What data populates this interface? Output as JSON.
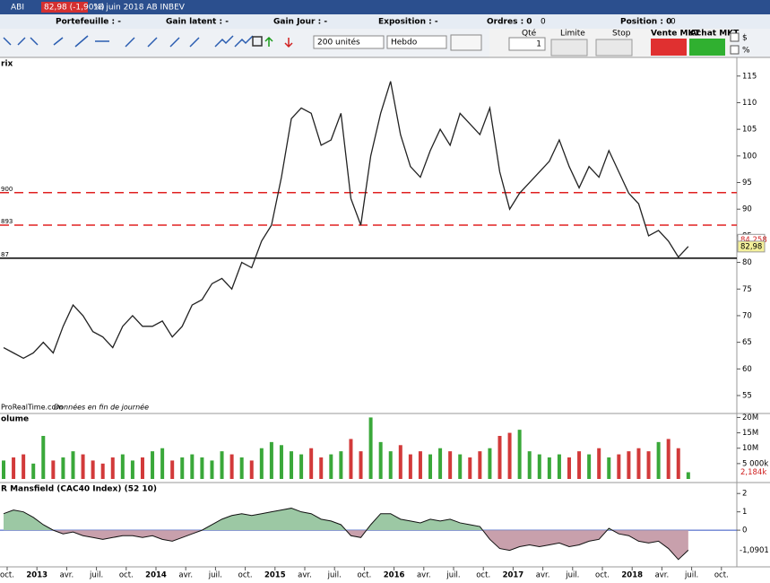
{
  "header": {
    "symbol": "ABI",
    "quote": "82,98 (-1,90%)",
    "info": "18 juin 2018 AB INBEV"
  },
  "infobar": [
    "Portefeuille : -",
    "Gain latent : -",
    "Gain Jour : -",
    "Exposition : -"
  ],
  "orders": {
    "label": "Ordres : 0",
    "count": "0"
  },
  "position": {
    "label": "Position : 0",
    "count": "0"
  },
  "toolbar": {
    "quantity": "200 unités",
    "period": "Hebdo",
    "qty_label": "Qté",
    "qty": "1",
    "limit": "Limite",
    "stop": "Stop",
    "sell": "Vente MKT",
    "buy": "Achat MKT",
    "dollar": "$",
    "percent": "%"
  },
  "price_panel": {
    "title": "rix",
    "source": "ProRealTime.com",
    "source_note": "Données en fin de journée",
    "ylim": [
      51.8,
      118.5
    ],
    "yticks": [
      55,
      60,
      65,
      70,
      75,
      80,
      85,
      90,
      95,
      100,
      105,
      110,
      115
    ],
    "levels": [
      {
        "value": 93.1,
        "label": "900",
        "style": "dashed",
        "color": "#e02020"
      },
      {
        "value": 87,
        "label": "893",
        "style": "dashed",
        "color": "#e02020"
      },
      {
        "value": 80.8,
        "label": "87",
        "style": "solid",
        "color": "#000000"
      }
    ],
    "current": [
      {
        "value": 84.258,
        "label": "84,258"
      },
      {
        "value": 82.98,
        "label": "82,98"
      }
    ],
    "color": "#222222",
    "values": [
      64,
      63,
      62,
      63,
      65,
      63,
      68,
      72,
      70,
      67,
      66,
      64,
      68,
      70,
      68,
      68,
      69,
      66,
      68,
      72,
      73,
      76,
      77,
      75,
      80,
      79,
      84,
      87,
      96,
      107,
      109,
      108,
      102,
      103,
      108,
      92,
      87,
      100,
      108,
      114,
      104,
      98,
      96,
      101,
      105,
      102,
      108,
      106,
      104,
      109,
      97,
      90,
      93,
      95,
      97,
      99,
      103,
      98,
      94,
      98,
      96,
      101,
      97,
      93,
      91,
      85,
      86,
      84,
      81,
      83
    ]
  },
  "volume_panel": {
    "title": "olume",
    "ylim": [
      0,
      21
    ],
    "yticks": [
      {
        "value": 20,
        "label": "20M"
      },
      {
        "value": 15,
        "label": "15M"
      },
      {
        "value": 10,
        "label": "10M"
      },
      {
        "value": 5,
        "label": "5 000k"
      }
    ],
    "values": [
      6,
      7,
      8,
      5,
      14,
      6,
      7,
      9,
      8,
      6,
      5,
      7,
      8,
      6,
      7,
      9,
      10,
      6,
      7,
      8,
      7,
      6,
      9,
      8,
      7,
      6,
      10,
      12,
      11,
      9,
      8,
      10,
      7,
      8,
      9,
      13,
      9,
      20,
      12,
      9,
      11,
      8,
      9,
      8,
      10,
      9,
      8,
      7,
      9,
      10,
      14,
      15,
      16,
      9,
      8,
      7,
      8,
      7,
      9,
      8,
      10,
      7,
      8,
      9,
      10,
      9,
      12,
      13,
      10,
      2.184
    ],
    "last_label": "2,184k"
  },
  "mansfield_panel": {
    "title": "R Mansfield (CAC40 Index) (52 10)",
    "ylim": [
      -2,
      2.5
    ],
    "yticks": [
      0,
      1,
      2
    ],
    "values": [
      0.9,
      1.1,
      1.0,
      0.7,
      0.3,
      0.0,
      -0.2,
      -0.1,
      -0.3,
      -0.4,
      -0.5,
      -0.4,
      -0.3,
      -0.3,
      -0.4,
      -0.3,
      -0.5,
      -0.6,
      -0.4,
      -0.2,
      0.0,
      0.3,
      0.6,
      0.8,
      0.9,
      0.8,
      0.9,
      1.0,
      1.1,
      1.2,
      1.0,
      0.9,
      0.6,
      0.5,
      0.3,
      -0.3,
      -0.4,
      0.3,
      0.9,
      0.9,
      0.6,
      0.5,
      0.4,
      0.6,
      0.5,
      0.6,
      0.4,
      0.3,
      0.2,
      -0.5,
      -1.0,
      -1.1,
      -0.9,
      -0.8,
      -0.9,
      -0.8,
      -0.7,
      -0.9,
      -0.8,
      -0.6,
      -0.5,
      0.1,
      -0.2,
      -0.3,
      -0.6,
      -0.7,
      -0.6,
      -1.0,
      -1.6,
      -1.0901
    ],
    "last_label": "-1,0901"
  },
  "time_axis": [
    "oct.",
    "2013",
    "avr.",
    "juil.",
    "oct.",
    "2014",
    "avr.",
    "juil.",
    "oct.",
    "2015",
    "avr.",
    "juil.",
    "oct.",
    "2016",
    "avr.",
    "juil.",
    "oct.",
    "2017",
    "avr.",
    "juil.",
    "oct.",
    "2018",
    "avr.",
    "juil.",
    "oct."
  ]
}
